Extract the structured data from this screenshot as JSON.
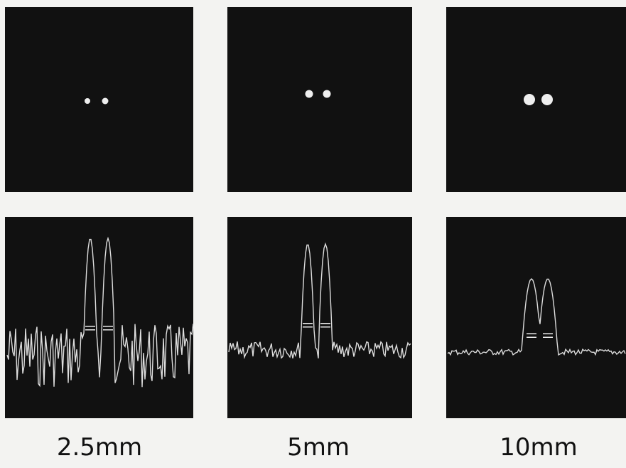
{
  "labels": [
    "2.5mm",
    "5mm",
    "10mm"
  ]
}
